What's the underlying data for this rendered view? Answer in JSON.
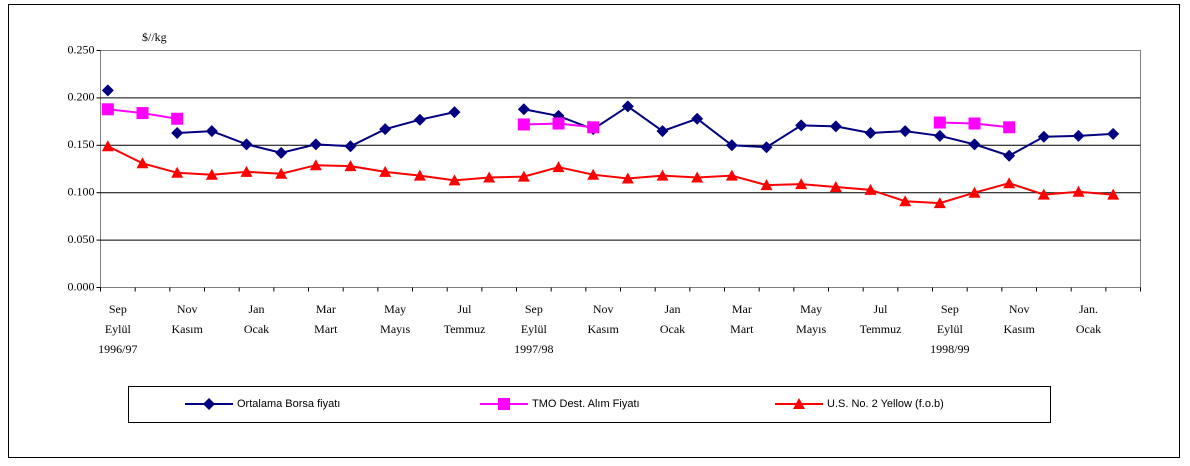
{
  "chart_data": {
    "type": "line",
    "y_unit_label": "$//kg",
    "categories": [
      [
        "Sep",
        "Eylül",
        "1996/97"
      ],
      null,
      [
        "Nov",
        "Kasım"
      ],
      null,
      [
        "Jan",
        "Ocak"
      ],
      null,
      [
        "Mar",
        "Mart"
      ],
      null,
      [
        "May",
        "Mayıs"
      ],
      null,
      [
        "Jul",
        "Temmuz"
      ],
      null,
      [
        "Sep",
        "Eylül",
        "1997/98"
      ],
      null,
      [
        "Nov",
        "Kasım"
      ],
      null,
      [
        "Jan",
        "Ocak"
      ],
      null,
      [
        "Mar",
        "Mart"
      ],
      null,
      [
        "May",
        "Mayıs"
      ],
      null,
      [
        "Jul",
        "Temmuz"
      ],
      null,
      [
        "Sep",
        "Eylül",
        "1998/99"
      ],
      null,
      [
        "Nov",
        "Kasım"
      ],
      null,
      [
        "Jan.",
        "Ocak"
      ],
      null
    ],
    "series": [
      {
        "name": "Ortalama Borsa fiyatı",
        "color": "#000080",
        "marker": "diamond",
        "values": [
          0.208,
          null,
          0.163,
          0.165,
          0.151,
          0.142,
          0.151,
          0.149,
          0.167,
          0.177,
          0.185,
          null,
          0.188,
          0.181,
          0.167,
          0.191,
          0.165,
          0.178,
          0.15,
          0.148,
          0.171,
          0.17,
          0.163,
          0.165,
          0.16,
          0.151,
          0.139,
          0.159,
          0.16,
          0.162
        ]
      },
      {
        "name": "TMO Dest. Alım Fiyatı",
        "color": "#ff00ff",
        "marker": "square",
        "values": [
          0.188,
          0.184,
          0.178,
          null,
          null,
          null,
          null,
          null,
          null,
          null,
          null,
          null,
          0.172,
          0.173,
          0.169,
          null,
          null,
          null,
          null,
          null,
          null,
          null,
          null,
          null,
          0.174,
          0.173,
          0.169,
          null,
          null,
          null
        ]
      },
      {
        "name": "U.S. No. 2  Yellow (f.o.b)",
        "color": "#ff0000",
        "marker": "triangle",
        "values": [
          0.149,
          0.131,
          0.121,
          0.119,
          0.122,
          0.12,
          0.129,
          0.128,
          0.122,
          0.118,
          0.113,
          0.116,
          0.117,
          0.127,
          0.119,
          0.115,
          0.118,
          0.116,
          0.118,
          0.108,
          0.109,
          0.106,
          0.103,
          0.091,
          0.089,
          0.1,
          0.11,
          0.098,
          0.101,
          0.098
        ]
      }
    ],
    "ylim": [
      0,
      0.25
    ],
    "yticks": [
      {
        "value": 0,
        "label": "0.000"
      },
      {
        "value": 0.05,
        "label": "0.050"
      },
      {
        "value": 0.1,
        "label": "0.100"
      },
      {
        "value": 0.15,
        "label": "0.150"
      },
      {
        "value": 0.2,
        "label": "0.200"
      },
      {
        "value": 0.25,
        "label": "0.250"
      }
    ],
    "grid": true,
    "legend": "bottom"
  }
}
